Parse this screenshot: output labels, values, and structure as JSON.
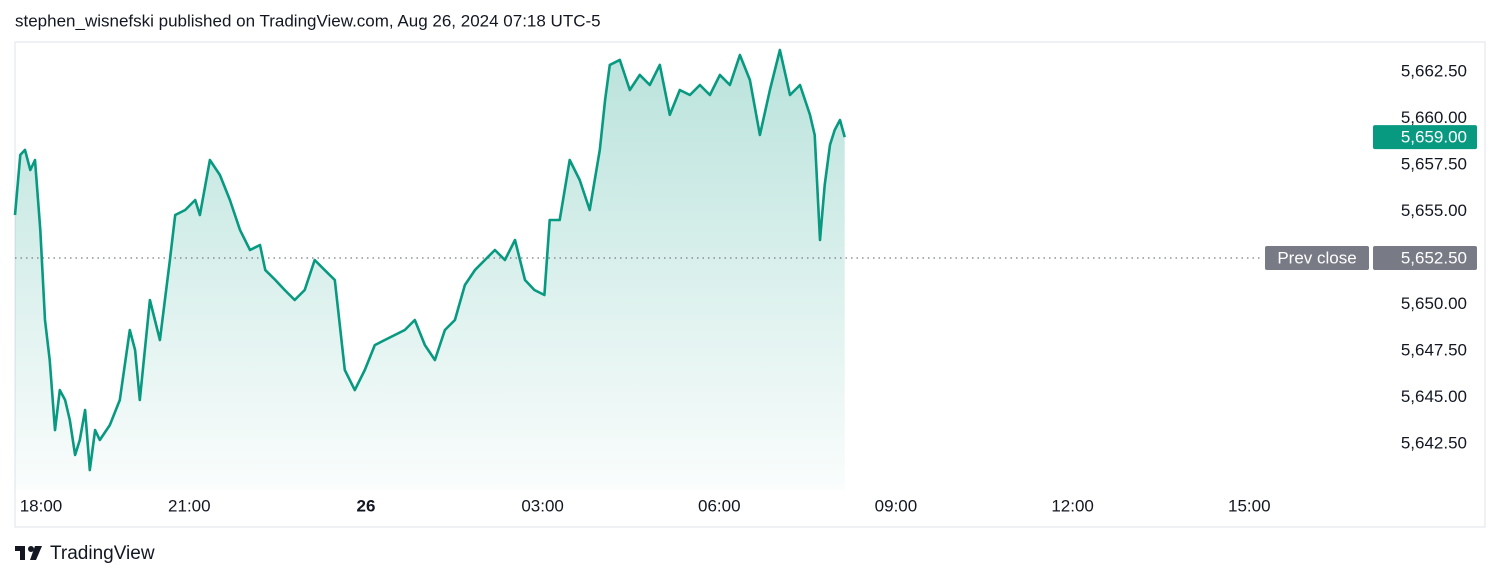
{
  "header": "stephen_wisnefski published on TradingView.com, Aug 26, 2024 07:18 UTC-5",
  "footer": "TradingView",
  "chart_data": {
    "type": "area",
    "color": "#089981",
    "x": [
      0.04,
      0.13,
      0.21,
      0.3,
      0.38,
      0.47,
      0.55,
      0.63,
      0.72,
      0.8,
      0.89,
      0.97,
      1.06,
      1.14,
      1.23,
      1.31,
      1.4,
      1.48,
      1.65,
      1.82,
      1.99,
      2.08,
      2.16,
      2.33,
      2.5,
      2.67,
      2.76,
      2.93,
      3.1,
      3.18,
      3.35,
      3.52,
      3.69,
      3.86,
      4.03,
      4.2,
      4.29,
      4.46,
      4.62,
      4.79,
      4.96,
      5.13,
      5.3,
      5.47,
      5.64,
      5.81,
      5.98,
      6.15,
      6.32,
      6.49,
      6.66,
      6.83,
      7.0,
      7.17,
      7.34,
      7.51,
      7.68,
      7.85,
      8.02,
      8.19,
      8.36,
      8.53,
      8.7,
      8.86,
      9.03,
      9.12,
      9.29,
      9.46,
      9.63,
      9.8,
      9.97,
      10.06,
      10.14,
      10.31,
      10.48,
      10.65,
      10.82,
      10.99,
      11.16,
      11.33,
      11.5,
      11.67,
      11.84,
      12.01,
      12.18,
      12.35,
      12.52,
      12.69,
      12.86,
      13.03,
      13.2,
      13.37,
      13.54,
      13.62,
      13.71,
      13.79,
      13.88,
      13.96,
      14.05,
      14.13
    ],
    "values": [
      5654.81,
      5658.04,
      5658.31,
      5657.23,
      5657.77,
      5654.01,
      5649.17,
      5647.02,
      5643.25,
      5645.4,
      5644.87,
      5643.79,
      5641.91,
      5642.72,
      5644.33,
      5641.1,
      5643.25,
      5642.72,
      5643.52,
      5644.87,
      5648.63,
      5647.55,
      5644.87,
      5650.24,
      5648.09,
      5652.39,
      5654.81,
      5655.08,
      5655.62,
      5654.81,
      5657.77,
      5656.96,
      5655.62,
      5654.01,
      5652.93,
      5653.2,
      5651.85,
      5651.32,
      5650.78,
      5650.24,
      5650.78,
      5652.39,
      5651.85,
      5651.32,
      5646.48,
      5645.4,
      5646.48,
      5647.82,
      5648.09,
      5648.36,
      5648.63,
      5649.17,
      5647.82,
      5647.02,
      5648.63,
      5649.17,
      5651.05,
      5651.85,
      5652.39,
      5652.93,
      5652.39,
      5653.47,
      5651.32,
      5650.78,
      5650.51,
      5654.54,
      5654.54,
      5657.77,
      5656.69,
      5655.08,
      5658.31,
      5660.99,
      5662.88,
      5663.15,
      5661.53,
      5662.34,
      5661.8,
      5662.88,
      5660.19,
      5661.53,
      5661.26,
      5661.8,
      5661.26,
      5662.34,
      5661.8,
      5663.41,
      5662.07,
      5659.11,
      5661.53,
      5663.68,
      5661.26,
      5661.8,
      5660.19,
      5659.11,
      5653.47,
      5656.42,
      5658.58,
      5659.38,
      5659.92,
      5659.0
    ],
    "last_value_label": "5,659.00",
    "prev_close": {
      "label": "Prev close",
      "value": 5652.5,
      "value_label": "5,652.50"
    },
    "xlim": [
      0.04,
      23.05
    ],
    "xticks": [
      {
        "value": 0,
        "label": "18:00"
      },
      {
        "value": 3,
        "label": "21:00"
      },
      {
        "value": 6,
        "label": "26",
        "bold": true
      },
      {
        "value": 9,
        "label": "03:00"
      },
      {
        "value": 12,
        "label": "06:00"
      },
      {
        "value": 15,
        "label": "09:00"
      },
      {
        "value": 18,
        "label": "12:00"
      },
      {
        "value": 21,
        "label": "15:00"
      }
    ],
    "ylim": [
      5640.03,
      5664.11
    ],
    "yticks": [
      {
        "value": 5642.5,
        "label": "5,642.50"
      },
      {
        "value": 5645,
        "label": "5,645.00"
      },
      {
        "value": 5647.5,
        "label": "5,647.50"
      },
      {
        "value": 5650,
        "label": "5,650.00"
      },
      {
        "value": 5655,
        "label": "5,655.00"
      },
      {
        "value": 5657.5,
        "label": "5,657.50"
      },
      {
        "value": 5660,
        "label": "5,660.00"
      },
      {
        "value": 5662.5,
        "label": "5,662.50"
      }
    ]
  }
}
